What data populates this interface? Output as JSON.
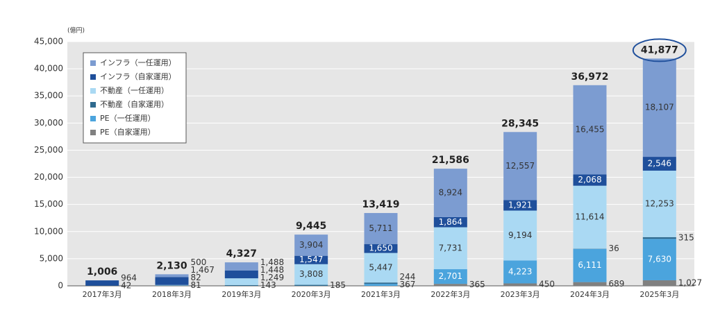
{
  "chart_data": {
    "type": "stacked_bar",
    "unit_label": "(億円)",
    "categories": [
      "2017年3月",
      "2018年3月",
      "2019年3月",
      "2020年3月",
      "2021年3月",
      "2022年3月",
      "2023年3月",
      "2024年3月",
      "2025年3月"
    ],
    "series": [
      {
        "name": "PE（自家運用）",
        "color": "#808080",
        "values": [
          null,
          null,
          null,
          null,
          null,
          365,
          450,
          689,
          1027
        ],
        "value_labels": [
          null,
          null,
          null,
          null,
          null,
          "365",
          "450",
          "689",
          "1,027"
        ]
      },
      {
        "name": "PE（一任運用）",
        "color": "#4ba4dd",
        "values": [
          null,
          null,
          null,
          null,
          367,
          2701,
          4223,
          6111,
          7630
        ],
        "value_labels": [
          null,
          null,
          null,
          null,
          "367",
          "2,701",
          "4,223",
          "6,111",
          "7,630"
        ]
      },
      {
        "name": "不動産（自家運用）",
        "color": "#2e6a8f",
        "values": [
          42,
          81,
          143,
          185,
          244,
          null,
          null,
          36,
          315
        ],
        "value_labels": [
          null,
          null,
          null,
          null,
          null,
          null,
          null,
          null,
          null
        ]
      },
      {
        "name": "不動産（一任運用）",
        "color": "#aad9f3",
        "values": [
          null,
          82,
          1249,
          3808,
          5447,
          7731,
          9194,
          11614,
          12253
        ],
        "value_labels": [
          null,
          null,
          "1,249",
          "3,808",
          "5,447",
          "7,731",
          "9,194",
          "11,614",
          "12,253"
        ]
      },
      {
        "name": "インフラ（自家運用）",
        "color": "#1f4f9b",
        "values": [
          964,
          1467,
          1448,
          1547,
          1650,
          1864,
          1921,
          2068,
          2546
        ],
        "value_labels": [
          null,
          "1,467",
          "1,448",
          "1,547",
          "1,650",
          "1,864",
          "1,921",
          "2,068",
          "2,546"
        ]
      },
      {
        "name": "インフラ（一任運用）",
        "color": "#7c9cd1",
        "values": [
          null,
          500,
          1488,
          3904,
          5711,
          8924,
          12557,
          16455,
          18107
        ],
        "value_labels": [
          null,
          null,
          "1,488",
          "3,904",
          "5,711",
          "8,924",
          "12,557",
          "16,455",
          "18,107"
        ]
      }
    ],
    "totals": [
      1006,
      2130,
      4327,
      9445,
      13419,
      21586,
      28345,
      36972,
      41877
    ],
    "total_labels": [
      "1,006",
      "2,130",
      "4,327",
      "9,445",
      "13,419",
      "21,586",
      "28,345",
      "36,972",
      "41,877"
    ],
    "ylim": [
      0,
      45000
    ],
    "yticks": [
      0,
      {
        "value": 5000,
        "label": "5,000"
      },
      {
        "value": 10000,
        "label": "10,000"
      },
      {
        "value": 15000,
        "label": "15,000"
      },
      {
        "value": 20000,
        "label": "20,000"
      },
      {
        "value": 25000,
        "label": "25,000"
      },
      {
        "value": 30000,
        "label": "30,000"
      },
      {
        "value": 35000,
        "label": "35,000"
      },
      {
        "value": 40000,
        "label": "40,000"
      },
      {
        "value": 45000,
        "label": "45,000"
      }
    ],
    "grid": true,
    "legend": "upper left"
  }
}
